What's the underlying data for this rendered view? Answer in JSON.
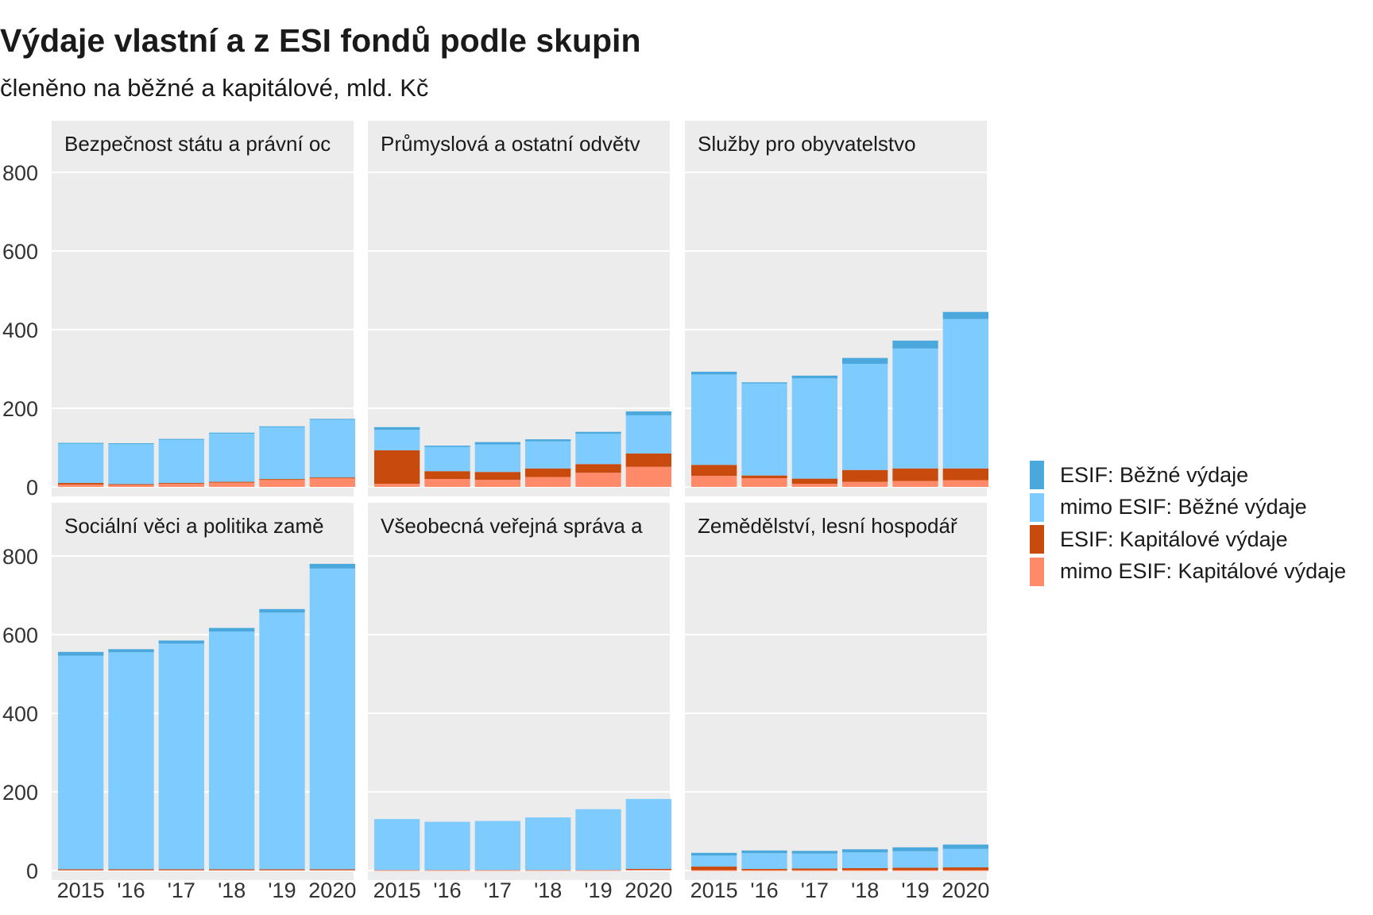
{
  "title": "Výdaje vlastní a z ESI fondů podle skupin",
  "subtitle": "členěno na běžné a kapitálové, mld. Kč",
  "chart_data": {
    "type": "bar",
    "stacked": true,
    "facets": [
      "Bezpečnost státu a právní ochrana",
      "Průmyslová a ostatní odvětví hospodářství",
      "Služby pro obyvatelstvo",
      "Sociální věci a politika zaměstnanosti",
      "Všeobecná veřejná správa a služby",
      "Zemědělství, lesní hospodářství a rybářství"
    ],
    "facet_labels": [
      "Bezpečnost státu a právní oc",
      "Průmyslová a ostatní odvětv",
      "Služby pro obyvatelstvo",
      "Sociální věci a politika zamě",
      "Všeobecná veřejná správa a",
      "Zemědělství, lesní hospodář"
    ],
    "categories": [
      "2015",
      "2016",
      "2017",
      "2018",
      "2019",
      "2020"
    ],
    "x_tick_labels": [
      "2015",
      "'16",
      "'17",
      "'18",
      "'19",
      "2020"
    ],
    "y_ticks": [
      0,
      200,
      400,
      600,
      800
    ],
    "y_tick_labels": [
      "0",
      "200",
      "400",
      "600",
      "800"
    ],
    "ylim": [
      0,
      900
    ],
    "grid": true,
    "legend_position": "right",
    "series": [
      {
        "name": "ESIF: Běžné výdaje",
        "color": "#4aa8dc",
        "values": [
          [
            1,
            1,
            1,
            1,
            1,
            1
          ],
          [
            7,
            3,
            6,
            5,
            5,
            10
          ],
          [
            7,
            3,
            7,
            15,
            20,
            18
          ],
          [
            10,
            8,
            8,
            9,
            9,
            12
          ],
          [
            0,
            0,
            0,
            0,
            0,
            0
          ],
          [
            7,
            7,
            7,
            8,
            10,
            11
          ]
        ]
      },
      {
        "name": "mimo ESIF: Běžné výdaje",
        "color": "#7ecbff",
        "values": [
          [
            101,
            103,
            111,
            124,
            133,
            148
          ],
          [
            52,
            62,
            70,
            69,
            77,
            97
          ],
          [
            230,
            234,
            255,
            270,
            305,
            380
          ],
          [
            543,
            552,
            574,
            605,
            653,
            765
          ],
          [
            130,
            123,
            125,
            134,
            155,
            178
          ],
          [
            28,
            40,
            38,
            40,
            42,
            47
          ]
        ]
      },
      {
        "name": "ESIF: Kapitálové výdaje",
        "color": "#c84a0c",
        "values": [
          [
            4,
            2,
            2,
            2,
            1,
            1
          ],
          [
            85,
            20,
            20,
            22,
            22,
            34
          ],
          [
            28,
            7,
            13,
            30,
            32,
            30
          ],
          [
            1,
            1,
            1,
            1,
            1,
            1
          ],
          [
            0,
            0,
            0,
            0,
            0,
            1
          ],
          [
            9,
            3,
            4,
            5,
            6,
            7
          ]
        ]
      },
      {
        "name": "mimo ESIF: Kapitálové výdaje",
        "color": "#ff8a6a",
        "values": [
          [
            6,
            5,
            8,
            11,
            19,
            23
          ],
          [
            8,
            20,
            18,
            25,
            36,
            51
          ],
          [
            28,
            22,
            8,
            13,
            15,
            17
          ],
          [
            2,
            2,
            2,
            2,
            2,
            2
          ],
          [
            1,
            1,
            1,
            1,
            1,
            3
          ],
          [
            1,
            1,
            1,
            1,
            1,
            1
          ]
        ]
      }
    ]
  }
}
